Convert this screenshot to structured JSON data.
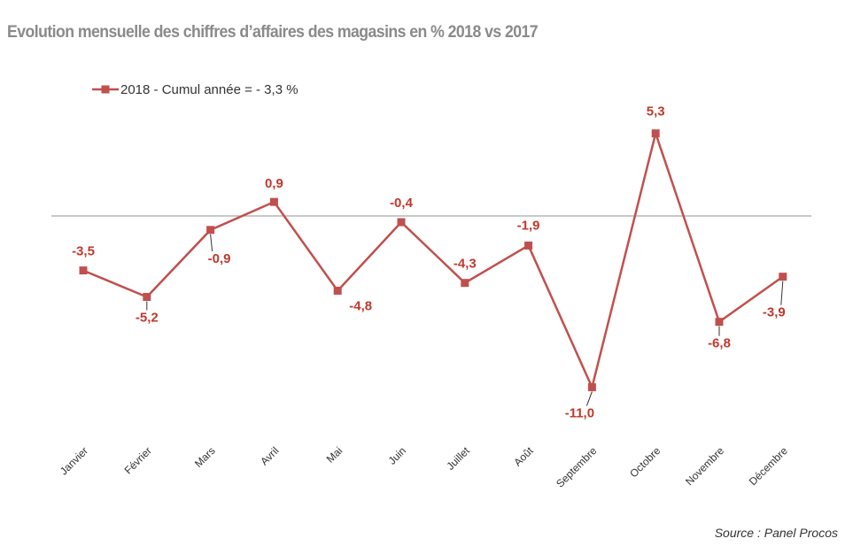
{
  "title": "Evolution mensuelle des chiffres d’affaires des magasins en % 2018 vs 2017",
  "source": "Source : Panel Procos",
  "colors": {
    "series": "#c0504d",
    "label": "#c0392b",
    "axis": "#a6a6a6"
  },
  "chart_data": {
    "type": "line",
    "title": "Evolution mensuelle des chiffres d’affaires des magasins en % 2018 vs 2017",
    "xlabel": "",
    "ylabel": "",
    "categories": [
      "Janvier",
      "Février",
      "Mars",
      "Avril",
      "Mai",
      "Juin",
      "Juillet",
      "Août",
      "Septembre",
      "Octobre",
      "Novembre",
      "Décembre"
    ],
    "series": [
      {
        "name": "2018 - Cumul année = - 3,3 %",
        "values": [
          -3.5,
          -5.2,
          -0.9,
          0.9,
          -4.8,
          -0.4,
          -4.3,
          -1.9,
          -11.0,
          5.3,
          -6.8,
          -3.9
        ],
        "labels": [
          "-3,5",
          "-5,2",
          "-0,9",
          "0,9",
          "-4,8",
          "-0,4",
          "-4,3",
          "-1,9",
          "-11,0",
          "5,3",
          "-6,8",
          "-3,9"
        ]
      }
    ],
    "marker": "square",
    "legend_position": "top-left",
    "grid": false,
    "y_axis_visible": false,
    "x_axis_line_at": 0
  }
}
